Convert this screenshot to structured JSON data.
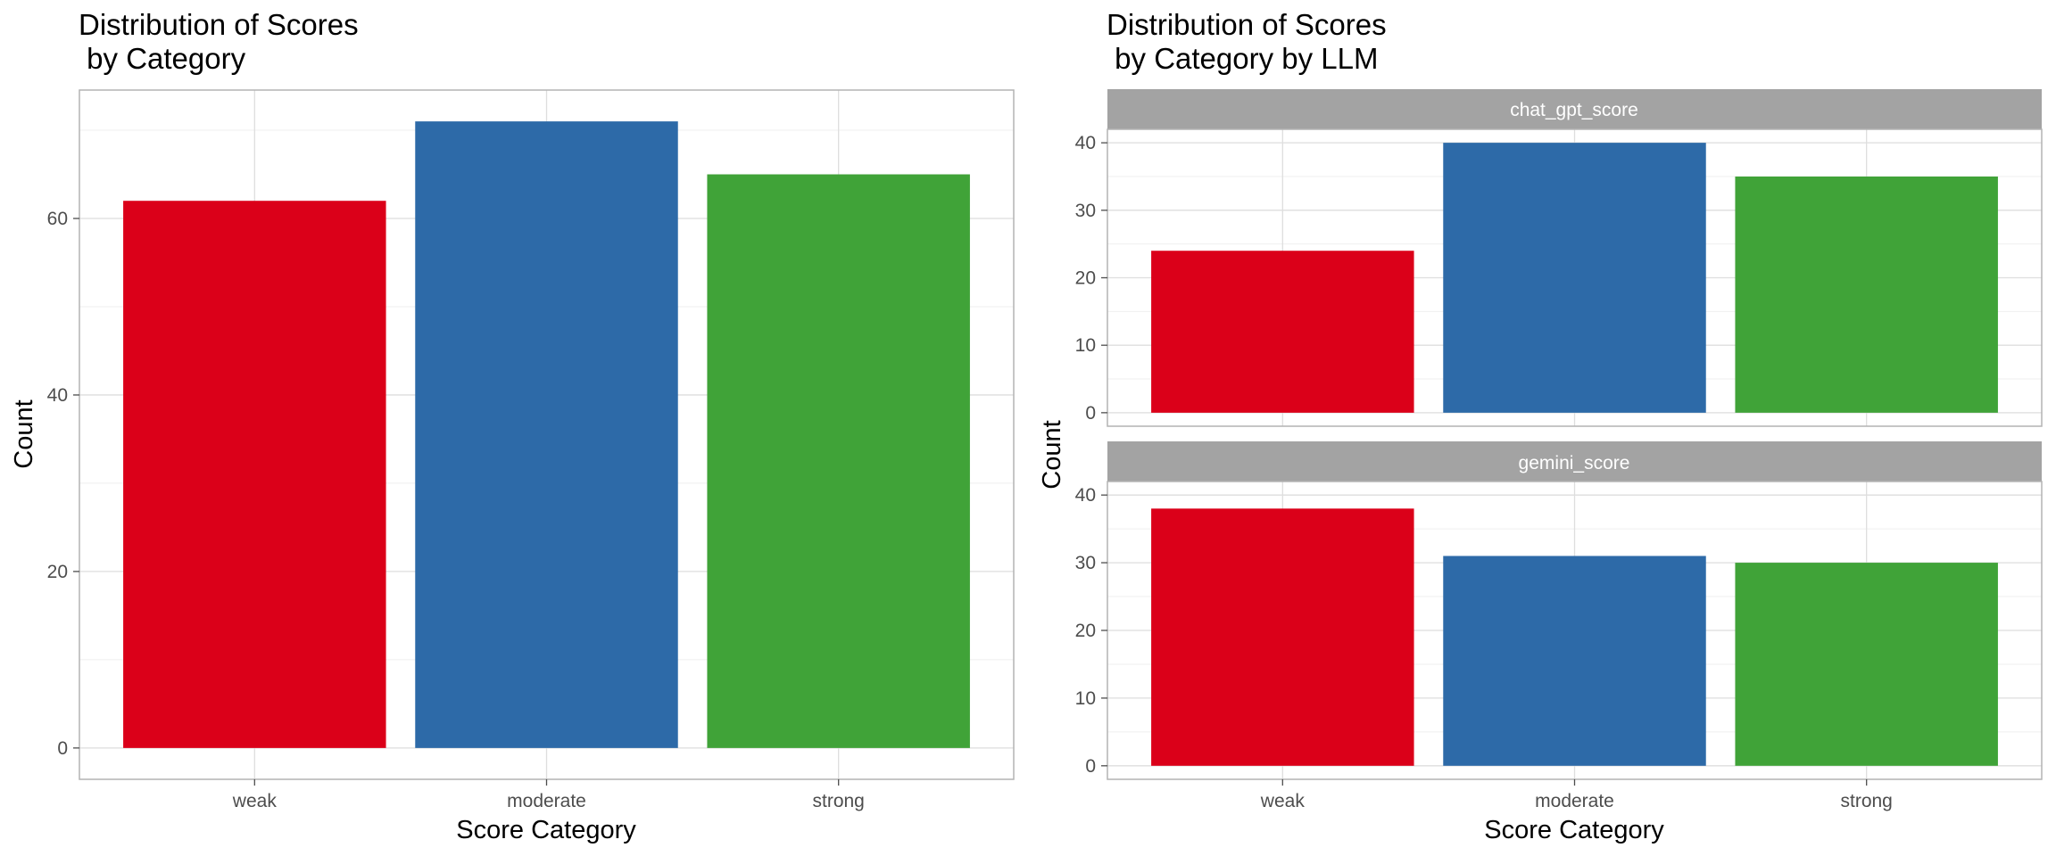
{
  "chart_data": [
    {
      "type": "bar",
      "title_lines": [
        "Distribution of Scores",
        " by Category"
      ],
      "xlabel": "Score Category",
      "ylabel": "Count",
      "categories": [
        "weak",
        "moderate",
        "strong"
      ],
      "colors": [
        "#DB0019",
        "#2D6AA8",
        "#40A338"
      ],
      "grid": true,
      "panels": [
        {
          "strip": "",
          "values": [
            62,
            71,
            65
          ],
          "ylim": [
            -3.55,
            74.55
          ],
          "yticks": [
            0,
            20,
            40,
            60
          ],
          "yminor": [
            10,
            30,
            50,
            70
          ]
        }
      ]
    },
    {
      "type": "bar",
      "title_lines": [
        "Distribution of Scores",
        " by Category by LLM"
      ],
      "xlabel": "Score Category",
      "ylabel": "Count",
      "categories": [
        "weak",
        "moderate",
        "strong"
      ],
      "colors": [
        "#DB0019",
        "#2D6AA8",
        "#40A338"
      ],
      "grid": true,
      "panels": [
        {
          "strip": "chat_gpt_score",
          "values": [
            24,
            40,
            35
          ],
          "ylim": [
            -2,
            42
          ],
          "yticks": [
            0,
            10,
            20,
            30,
            40
          ],
          "yminor": [
            5,
            15,
            25,
            35
          ]
        },
        {
          "strip": "gemini_score",
          "values": [
            38,
            31,
            30
          ],
          "ylim": [
            -2,
            42
          ],
          "yticks": [
            0,
            10,
            20,
            30,
            40
          ],
          "yminor": [
            5,
            15,
            25,
            35
          ]
        }
      ]
    }
  ]
}
